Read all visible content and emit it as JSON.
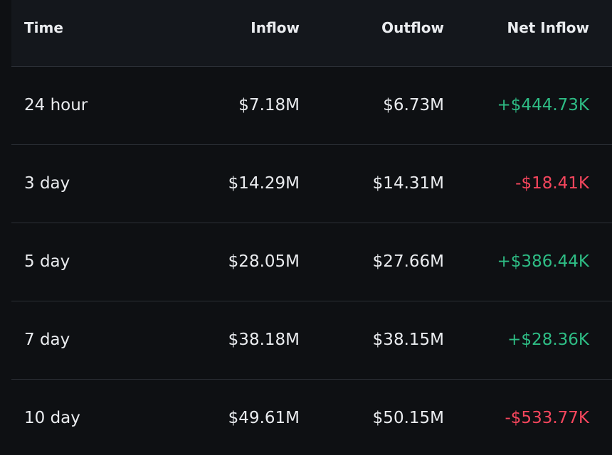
{
  "table": {
    "headers": {
      "time": "Time",
      "inflow": "Inflow",
      "outflow": "Outflow",
      "net_inflow": "Net Inflow"
    },
    "rows": [
      {
        "time": "24 hour",
        "inflow": "$7.18M",
        "outflow": "$6.73M",
        "net_inflow": "+$444.73K",
        "net_direction": "positive"
      },
      {
        "time": "3 day",
        "inflow": "$14.29M",
        "outflow": "$14.31M",
        "net_inflow": "-$18.41K",
        "net_direction": "negative"
      },
      {
        "time": "5 day",
        "inflow": "$28.05M",
        "outflow": "$27.66M",
        "net_inflow": "+$386.44K",
        "net_direction": "positive"
      },
      {
        "time": "7 day",
        "inflow": "$38.18M",
        "outflow": "$38.15M",
        "net_inflow": "+$28.36K",
        "net_direction": "positive"
      },
      {
        "time": "10 day",
        "inflow": "$49.61M",
        "outflow": "$50.15M",
        "net_inflow": "-$533.77K",
        "net_direction": "negative"
      }
    ]
  },
  "colors": {
    "background": "#0e1013",
    "header_background": "#14171c",
    "divider": "#2b2f36",
    "text": "#eaecef",
    "positive": "#2ebd85",
    "negative": "#f6465d"
  }
}
